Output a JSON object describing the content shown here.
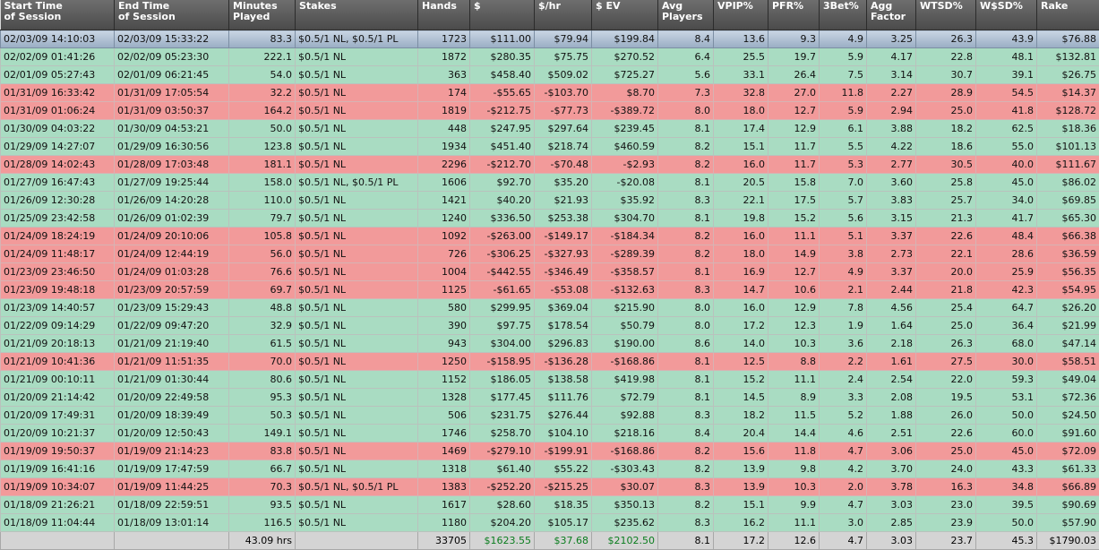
{
  "columns": [
    "Start Time\nof Session",
    "End Time\nof Session",
    "Minutes\nPlayed",
    "Stakes",
    "Hands",
    "$",
    "$/hr",
    "$ EV",
    "Avg\nPlayers",
    "VPIP%",
    "PFR%",
    "3Bet%",
    "Agg\nFactor",
    "WTSD%",
    "W$SD%",
    "Rake"
  ],
  "colors": {
    "win_row": "#a9dcc2",
    "loss_row": "#f29a9a",
    "selected_row": "#9aaec4",
    "header": "#5a5a5a",
    "total_positive": "#0a7d1e"
  },
  "rows": [
    {
      "result": "win",
      "selected": true,
      "cells": [
        "02/03/09 14:10:03",
        "02/03/09 15:33:22",
        "83.3",
        "$0.5/1 NL, $0.5/1 PL",
        "1723",
        "$111.00",
        "$79.94",
        "$199.84",
        "8.4",
        "13.6",
        "9.3",
        "4.9",
        "3.25",
        "26.3",
        "43.9",
        "$76.88"
      ]
    },
    {
      "result": "win",
      "cells": [
        "02/02/09 01:41:26",
        "02/02/09 05:23:30",
        "222.1",
        "$0.5/1 NL",
        "1872",
        "$280.35",
        "$75.75",
        "$270.52",
        "6.4",
        "25.5",
        "19.7",
        "5.9",
        "4.17",
        "22.8",
        "48.1",
        "$132.81"
      ]
    },
    {
      "result": "win",
      "cells": [
        "02/01/09 05:27:43",
        "02/01/09 06:21:45",
        "54.0",
        "$0.5/1 NL",
        "363",
        "$458.40",
        "$509.02",
        "$725.27",
        "5.6",
        "33.1",
        "26.4",
        "7.5",
        "3.14",
        "30.7",
        "39.1",
        "$26.75"
      ]
    },
    {
      "result": "loss",
      "cells": [
        "01/31/09 16:33:42",
        "01/31/09 17:05:54",
        "32.2",
        "$0.5/1 NL",
        "174",
        "-$55.65",
        "-$103.70",
        "$8.70",
        "7.3",
        "32.8",
        "27.0",
        "11.8",
        "2.27",
        "28.9",
        "54.5",
        "$14.37"
      ]
    },
    {
      "result": "loss",
      "cells": [
        "01/31/09 01:06:24",
        "01/31/09 03:50:37",
        "164.2",
        "$0.5/1 NL",
        "1819",
        "-$212.75",
        "-$77.73",
        "-$389.72",
        "8.0",
        "18.0",
        "12.7",
        "5.9",
        "2.94",
        "25.0",
        "41.8",
        "$128.72"
      ]
    },
    {
      "result": "win",
      "cells": [
        "01/30/09 04:03:22",
        "01/30/09 04:53:21",
        "50.0",
        "$0.5/1 NL",
        "448",
        "$247.95",
        "$297.64",
        "$239.45",
        "8.1",
        "17.4",
        "12.9",
        "6.1",
        "3.88",
        "18.2",
        "62.5",
        "$18.36"
      ]
    },
    {
      "result": "win",
      "cells": [
        "01/29/09 14:27:07",
        "01/29/09 16:30:56",
        "123.8",
        "$0.5/1 NL",
        "1934",
        "$451.40",
        "$218.74",
        "$460.59",
        "8.2",
        "15.1",
        "11.7",
        "5.5",
        "4.22",
        "18.6",
        "55.0",
        "$101.13"
      ]
    },
    {
      "result": "loss",
      "cells": [
        "01/28/09 14:02:43",
        "01/28/09 17:03:48",
        "181.1",
        "$0.5/1 NL",
        "2296",
        "-$212.70",
        "-$70.48",
        "-$2.93",
        "8.2",
        "16.0",
        "11.7",
        "5.3",
        "2.77",
        "30.5",
        "40.0",
        "$111.67"
      ]
    },
    {
      "result": "win",
      "cells": [
        "01/27/09 16:47:43",
        "01/27/09 19:25:44",
        "158.0",
        "$0.5/1 NL, $0.5/1 PL",
        "1606",
        "$92.70",
        "$35.20",
        "-$20.08",
        "8.1",
        "20.5",
        "15.8",
        "7.0",
        "3.60",
        "25.8",
        "45.0",
        "$86.02"
      ]
    },
    {
      "result": "win",
      "cells": [
        "01/26/09 12:30:28",
        "01/26/09 14:20:28",
        "110.0",
        "$0.5/1 NL",
        "1421",
        "$40.20",
        "$21.93",
        "$35.92",
        "8.3",
        "22.1",
        "17.5",
        "5.7",
        "3.83",
        "25.7",
        "34.0",
        "$69.85"
      ]
    },
    {
      "result": "win",
      "cells": [
        "01/25/09 23:42:58",
        "01/26/09 01:02:39",
        "79.7",
        "$0.5/1 NL",
        "1240",
        "$336.50",
        "$253.38",
        "$304.70",
        "8.1",
        "19.8",
        "15.2",
        "5.6",
        "3.15",
        "21.3",
        "41.7",
        "$65.30"
      ]
    },
    {
      "result": "loss",
      "cells": [
        "01/24/09 18:24:19",
        "01/24/09 20:10:06",
        "105.8",
        "$0.5/1 NL",
        "1092",
        "-$263.00",
        "-$149.17",
        "-$184.34",
        "8.2",
        "16.0",
        "11.1",
        "5.1",
        "3.37",
        "22.6",
        "48.4",
        "$66.38"
      ]
    },
    {
      "result": "loss",
      "cells": [
        "01/24/09 11:48:17",
        "01/24/09 12:44:19",
        "56.0",
        "$0.5/1 NL",
        "726",
        "-$306.25",
        "-$327.93",
        "-$289.39",
        "8.2",
        "18.0",
        "14.9",
        "3.8",
        "2.73",
        "22.1",
        "28.6",
        "$36.59"
      ]
    },
    {
      "result": "loss",
      "cells": [
        "01/23/09 23:46:50",
        "01/24/09 01:03:28",
        "76.6",
        "$0.5/1 NL",
        "1004",
        "-$442.55",
        "-$346.49",
        "-$358.57",
        "8.1",
        "16.9",
        "12.7",
        "4.9",
        "3.37",
        "20.0",
        "25.9",
        "$56.35"
      ]
    },
    {
      "result": "loss",
      "cells": [
        "01/23/09 19:48:18",
        "01/23/09 20:57:59",
        "69.7",
        "$0.5/1 NL",
        "1125",
        "-$61.65",
        "-$53.08",
        "-$132.63",
        "8.3",
        "14.7",
        "10.6",
        "2.1",
        "2.44",
        "21.8",
        "42.3",
        "$54.95"
      ]
    },
    {
      "result": "win",
      "cells": [
        "01/23/09 14:40:57",
        "01/23/09 15:29:43",
        "48.8",
        "$0.5/1 NL",
        "580",
        "$299.95",
        "$369.04",
        "$215.90",
        "8.0",
        "16.0",
        "12.9",
        "7.8",
        "4.56",
        "25.4",
        "64.7",
        "$26.20"
      ]
    },
    {
      "result": "win",
      "cells": [
        "01/22/09 09:14:29",
        "01/22/09 09:47:20",
        "32.9",
        "$0.5/1 NL",
        "390",
        "$97.75",
        "$178.54",
        "$50.79",
        "8.0",
        "17.2",
        "12.3",
        "1.9",
        "1.64",
        "25.0",
        "36.4",
        "$21.99"
      ]
    },
    {
      "result": "win",
      "cells": [
        "01/21/09 20:18:13",
        "01/21/09 21:19:40",
        "61.5",
        "$0.5/1 NL",
        "943",
        "$304.00",
        "$296.83",
        "$190.00",
        "8.6",
        "14.0",
        "10.3",
        "3.6",
        "2.18",
        "26.3",
        "68.0",
        "$47.14"
      ]
    },
    {
      "result": "loss",
      "cells": [
        "01/21/09 10:41:36",
        "01/21/09 11:51:35",
        "70.0",
        "$0.5/1 NL",
        "1250",
        "-$158.95",
        "-$136.28",
        "-$168.86",
        "8.1",
        "12.5",
        "8.8",
        "2.2",
        "1.61",
        "27.5",
        "30.0",
        "$58.51"
      ]
    },
    {
      "result": "win",
      "cells": [
        "01/21/09 00:10:11",
        "01/21/09 01:30:44",
        "80.6",
        "$0.5/1 NL",
        "1152",
        "$186.05",
        "$138.58",
        "$419.98",
        "8.1",
        "15.2",
        "11.1",
        "2.4",
        "2.54",
        "22.0",
        "59.3",
        "$49.04"
      ]
    },
    {
      "result": "win",
      "cells": [
        "01/20/09 21:14:42",
        "01/20/09 22:49:58",
        "95.3",
        "$0.5/1 NL",
        "1328",
        "$177.45",
        "$111.76",
        "$72.79",
        "8.1",
        "14.5",
        "8.9",
        "3.3",
        "2.08",
        "19.5",
        "53.1",
        "$72.36"
      ]
    },
    {
      "result": "win",
      "cells": [
        "01/20/09 17:49:31",
        "01/20/09 18:39:49",
        "50.3",
        "$0.5/1 NL",
        "506",
        "$231.75",
        "$276.44",
        "$92.88",
        "8.3",
        "18.2",
        "11.5",
        "5.2",
        "1.88",
        "26.0",
        "50.0",
        "$24.50"
      ]
    },
    {
      "result": "win",
      "cells": [
        "01/20/09 10:21:37",
        "01/20/09 12:50:43",
        "149.1",
        "$0.5/1 NL",
        "1746",
        "$258.70",
        "$104.10",
        "$218.16",
        "8.4",
        "20.4",
        "14.4",
        "4.6",
        "2.51",
        "22.6",
        "60.0",
        "$91.60"
      ]
    },
    {
      "result": "loss",
      "cells": [
        "01/19/09 19:50:37",
        "01/19/09 21:14:23",
        "83.8",
        "$0.5/1 NL",
        "1469",
        "-$279.10",
        "-$199.91",
        "-$168.86",
        "8.2",
        "15.6",
        "11.8",
        "4.7",
        "3.06",
        "25.0",
        "45.0",
        "$72.09"
      ]
    },
    {
      "result": "win",
      "cells": [
        "01/19/09 16:41:16",
        "01/19/09 17:47:59",
        "66.7",
        "$0.5/1 NL",
        "1318",
        "$61.40",
        "$55.22",
        "-$303.43",
        "8.2",
        "13.9",
        "9.8",
        "4.2",
        "3.70",
        "24.0",
        "43.3",
        "$61.33"
      ]
    },
    {
      "result": "loss",
      "cells": [
        "01/19/09 10:34:07",
        "01/19/09 11:44:25",
        "70.3",
        "$0.5/1 NL, $0.5/1 PL",
        "1383",
        "-$252.20",
        "-$215.25",
        "$30.07",
        "8.3",
        "13.9",
        "10.3",
        "2.0",
        "3.78",
        "16.3",
        "34.8",
        "$66.89"
      ]
    },
    {
      "result": "win",
      "cells": [
        "01/18/09 21:26:21",
        "01/18/09 22:59:51",
        "93.5",
        "$0.5/1 NL",
        "1617",
        "$28.60",
        "$18.35",
        "$350.13",
        "8.2",
        "15.1",
        "9.9",
        "4.7",
        "3.03",
        "23.0",
        "39.5",
        "$90.69"
      ]
    },
    {
      "result": "win",
      "cells": [
        "01/18/09 11:04:44",
        "01/18/09 13:01:14",
        "116.5",
        "$0.5/1 NL",
        "1180",
        "$204.20",
        "$105.17",
        "$235.62",
        "8.3",
        "16.2",
        "11.1",
        "3.0",
        "2.85",
        "23.9",
        "50.0",
        "$57.90"
      ]
    }
  ],
  "totals": [
    "",
    "",
    "43.09 hrs",
    "",
    "33705",
    "$1623.55",
    "$37.68",
    "$2102.50",
    "8.1",
    "17.2",
    "12.6",
    "4.7",
    "3.03",
    "23.7",
    "45.3",
    "$1790.03"
  ]
}
